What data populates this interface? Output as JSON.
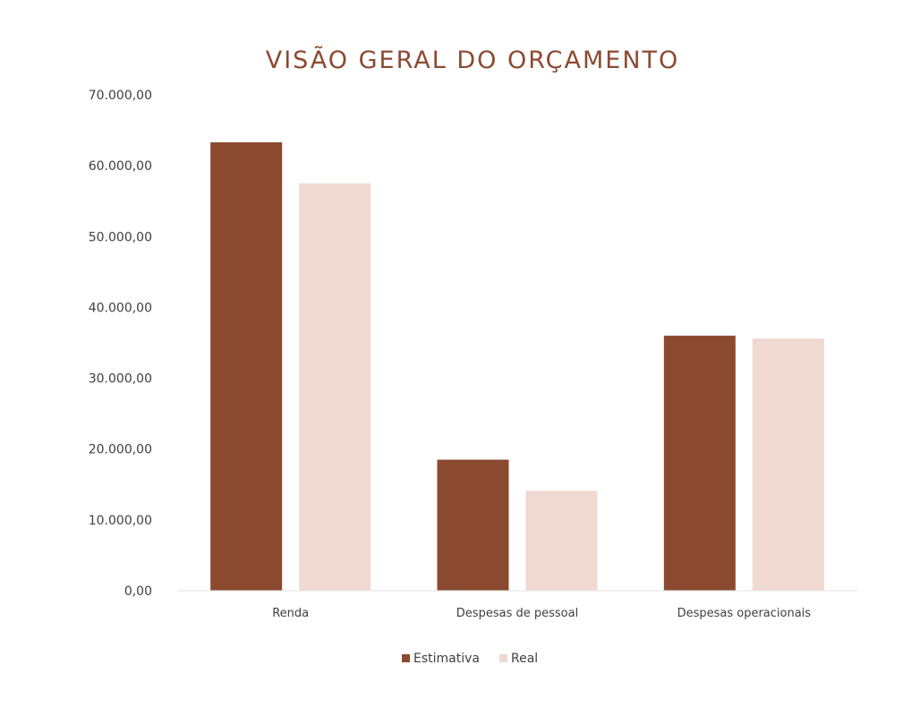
{
  "chart_data": {
    "type": "bar",
    "title": "VISÃO GERAL DO ORÇAMENTO",
    "xlabel": "",
    "ylabel": "",
    "categories": [
      "Renda",
      "Despesas de pessoal",
      "Despesas operacionais"
    ],
    "series": [
      {
        "name": "Estimativa",
        "values": [
          63300,
          18500,
          36000
        ],
        "color": "#8b4a30"
      },
      {
        "name": "Real",
        "values": [
          57500,
          14100,
          35600
        ],
        "color": "#efd9d1"
      }
    ],
    "ylim": [
      0,
      70000
    ],
    "yticks": [
      0,
      10000,
      20000,
      30000,
      40000,
      50000,
      60000,
      70000
    ],
    "ytick_labels": [
      "0,00",
      "10.000,00",
      "20.000,00",
      "30.000,00",
      "40.000,00",
      "50.000,00",
      "60.000,00",
      "70.000,00"
    ],
    "grid": false,
    "legend_position": "bottom",
    "title_color": "#8b4a30",
    "axis_color": "#e3e3e3"
  }
}
